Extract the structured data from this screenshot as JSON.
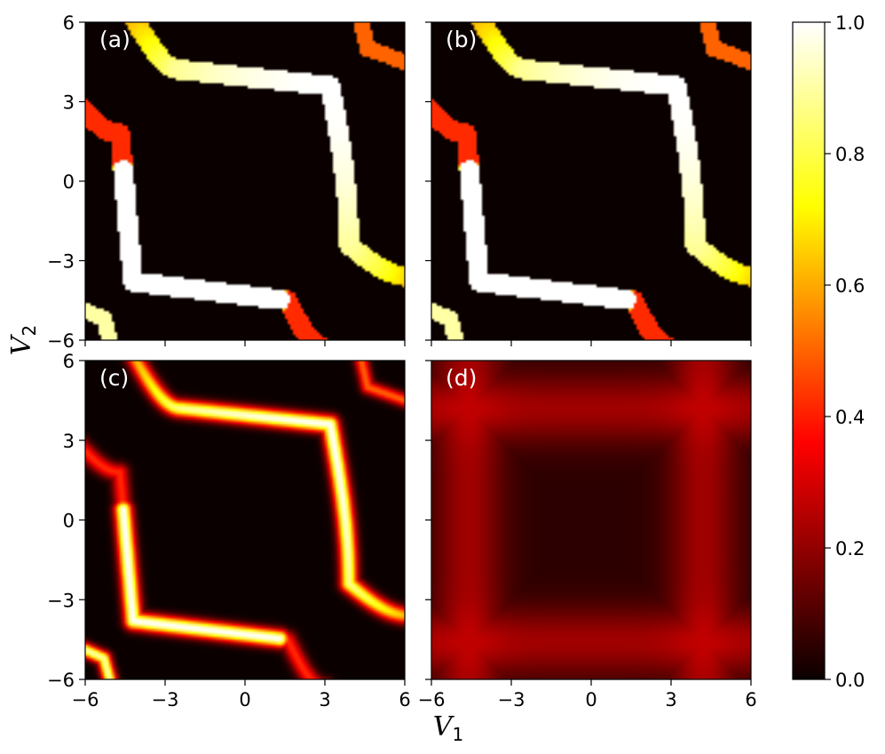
{
  "chart_data": [
    {
      "type": "heatmap",
      "panel_label": "(a)",
      "sharpness": 0,
      "xlim": [
        -6,
        6
      ],
      "ylim": [
        -6,
        6
      ],
      "xticks": [
        -6,
        -3,
        0,
        3,
        6
      ],
      "yticks": [
        -6,
        -3,
        0,
        3,
        6
      ],
      "xtick_labels": [
        "",
        "",
        "",
        "",
        ""
      ],
      "ytick_labels": [
        "6",
        "3",
        "0",
        "−3",
        "−6"
      ]
    },
    {
      "type": "heatmap",
      "panel_label": "(b)",
      "sharpness": 0,
      "xlim": [
        -6,
        6
      ],
      "ylim": [
        -6,
        6
      ],
      "xticks": [
        -6,
        -3,
        0,
        3,
        6
      ],
      "yticks": [
        -6,
        -3,
        0,
        3,
        6
      ],
      "xtick_labels": [
        "",
        "",
        "",
        "",
        ""
      ],
      "ytick_labels": [
        "",
        "",
        "",
        "",
        ""
      ]
    },
    {
      "type": "heatmap",
      "panel_label": "(c)",
      "sharpness": 1,
      "xlim": [
        -6,
        6
      ],
      "ylim": [
        -6,
        6
      ],
      "xticks": [
        -6,
        -3,
        0,
        3,
        6
      ],
      "yticks": [
        -6,
        -3,
        0,
        3,
        6
      ],
      "xtick_labels": [
        "−6",
        "−3",
        "0",
        "3",
        "6"
      ],
      "ytick_labels": [
        "6",
        "3",
        "0",
        "−3",
        "−6"
      ]
    },
    {
      "type": "heatmap",
      "panel_label": "(d)",
      "sharpness": 2,
      "xlim": [
        -6,
        6
      ],
      "ylim": [
        -6,
        6
      ],
      "xticks": [
        -6,
        -3,
        0,
        3,
        6
      ],
      "yticks": [
        -6,
        -3,
        0,
        3,
        6
      ],
      "xtick_labels": [
        "−6",
        "−3",
        "0",
        "3",
        "6"
      ],
      "ytick_labels": [
        "",
        "",
        "",
        "",
        ""
      ]
    }
  ],
  "xlabel": "V",
  "xlabel_sub": "1",
  "ylabel": "V",
  "ylabel_sub": "2",
  "colorbar": {
    "colormap": "hot",
    "range": [
      0,
      1
    ],
    "ticks": [
      0.0,
      0.2,
      0.4,
      0.6,
      0.8,
      1.0
    ],
    "tick_labels": [
      "0.0",
      "0.2",
      "0.4",
      "0.6",
      "0.8",
      "1.0"
    ],
    "colors": [
      "#0a0000",
      "#ff0000",
      "#ffff00",
      "#ffffff"
    ]
  }
}
